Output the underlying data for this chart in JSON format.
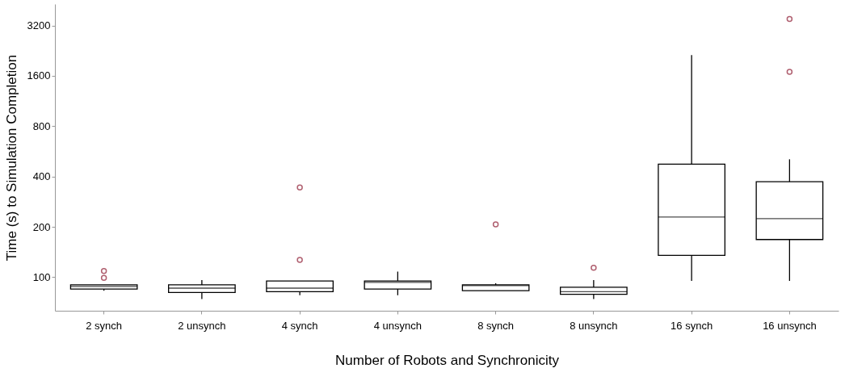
{
  "chart_data": {
    "type": "box",
    "xlabel": "Number of Robots and Synchronicity",
    "ylabel": "Time (s) to Simulation Completion",
    "categories": [
      "2 synch",
      "2 unsynch",
      "4 synch",
      "4 unsynch",
      "8 synch",
      "8 unsynch",
      "16 synch",
      "16 unsynch"
    ],
    "boxes": [
      {
        "low": 83,
        "q1": 85,
        "median": 88,
        "q3": 90,
        "high": 90,
        "outliers": [
          99,
          109
        ]
      },
      {
        "low": 74,
        "q1": 81,
        "median": 86,
        "q3": 90,
        "high": 96
      },
      {
        "low": 78,
        "q1": 82,
        "median": 86,
        "q3": 95,
        "high": 95,
        "outliers": [
          127,
          344
        ]
      },
      {
        "low": 78,
        "q1": 85,
        "median": 93,
        "q3": 95,
        "high": 108
      },
      {
        "low": 83,
        "q1": 83,
        "median": 89,
        "q3": 90,
        "high": 92,
        "outliers": [
          207
        ]
      },
      {
        "low": 74,
        "q1": 79,
        "median": 82,
        "q3": 87,
        "high": 96,
        "outliers": [
          114
        ]
      },
      {
        "low": 95,
        "q1": 135,
        "median": 229,
        "q3": 474,
        "high": 2130
      },
      {
        "low": 95,
        "q1": 168,
        "median": 224,
        "q3": 372,
        "high": 507,
        "outliers": [
          1690,
          3500
        ]
      }
    ],
    "color": "#ffffff",
    "log": true,
    "ylim": [
      63,
      4300
    ],
    "yticks": [
      100,
      200,
      400,
      800,
      1600,
      3200
    ],
    "grid": false
  }
}
